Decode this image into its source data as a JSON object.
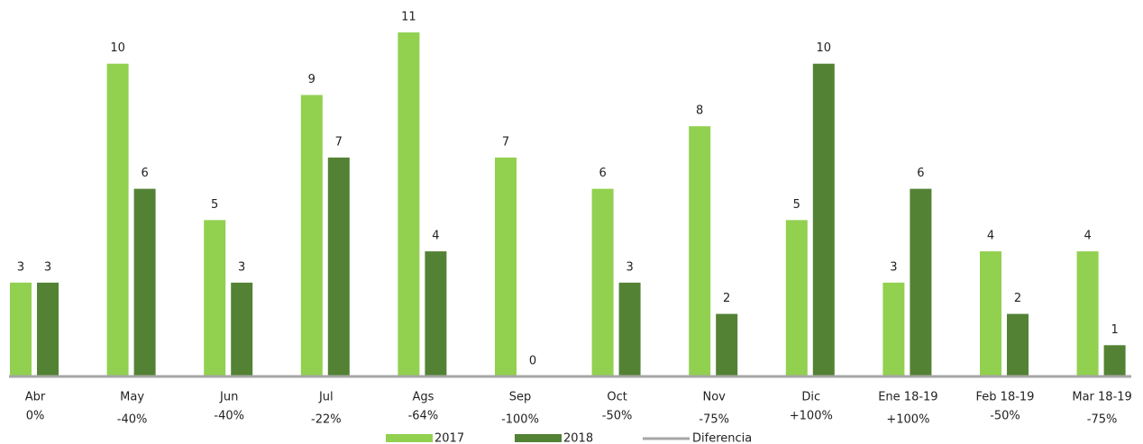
{
  "chart_data": {
    "type": "bar",
    "categories": [
      "Abr",
      "May",
      "Jun",
      "Jul",
      "Ags",
      "Sep",
      "Oct",
      "Nov",
      "Dic",
      "Ene 18-19",
      "Feb 18-19",
      "Mar 18-19"
    ],
    "series": [
      {
        "name": "2017",
        "color": "#92d050",
        "values": [
          3,
          10,
          5,
          9,
          11,
          7,
          6,
          8,
          5,
          3,
          4,
          4
        ]
      },
      {
        "name": "2018",
        "color": "#548235",
        "values": [
          3,
          6,
          3,
          7,
          4,
          0,
          3,
          2,
          10,
          6,
          2,
          1
        ]
      }
    ],
    "difference": {
      "name": "Diferencia",
      "color": "#a6a6a6",
      "labels": [
        "0%",
        "-40%",
        "-40%",
        "-22%",
        "-64%",
        "-100%",
        "-50%",
        "-75%",
        "+100%",
        "+100%",
        "-50%",
        "-75%"
      ]
    },
    "ylim": [
      0,
      11
    ]
  }
}
